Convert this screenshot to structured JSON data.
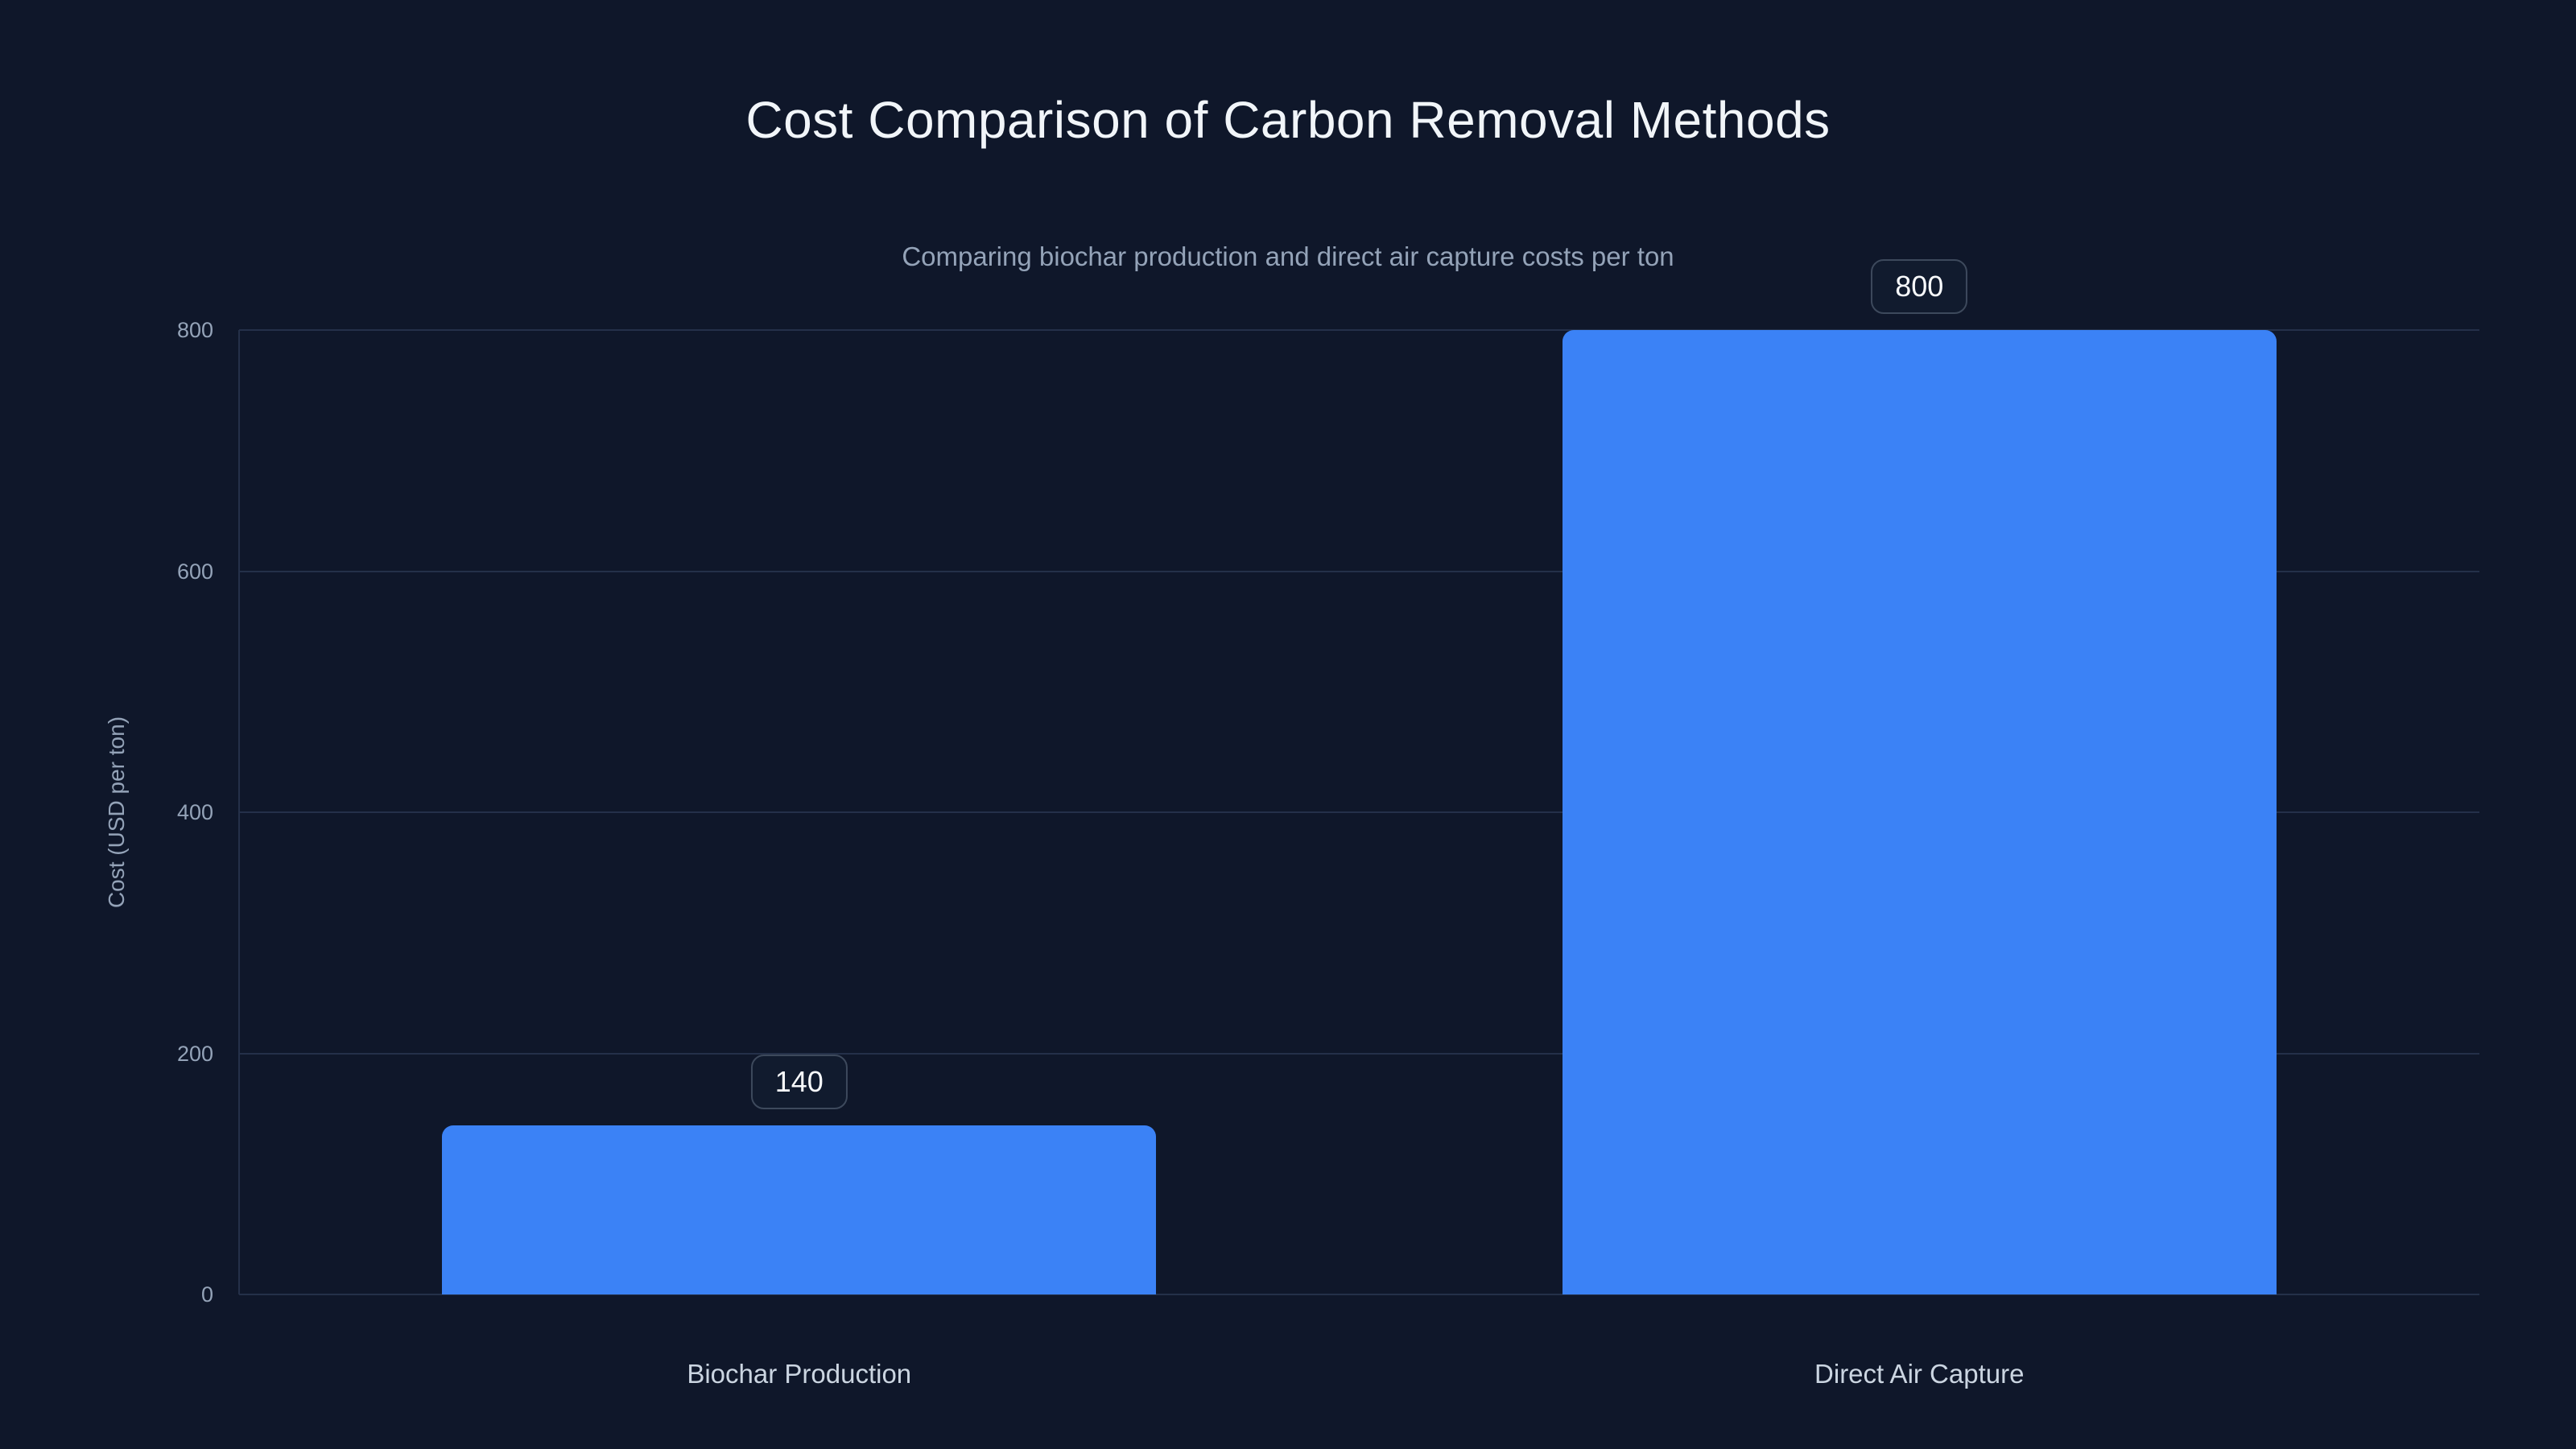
{
  "header": {
    "title": "Cost Comparison of Carbon Removal Methods",
    "subtitle": "Comparing biochar production and direct air capture costs per ton"
  },
  "chart_data": {
    "type": "bar",
    "title": "Cost Comparison of Carbon Removal Methods",
    "subtitle": "Comparing biochar production and direct air capture costs per ton",
    "categories": [
      "Biochar Production",
      "Direct Air Capture"
    ],
    "values": [
      140,
      800
    ],
    "value_labels": [
      "140",
      "800"
    ],
    "xlabel": "",
    "ylabel": "Cost (USD per ton)",
    "ylim": [
      0,
      800
    ],
    "yticks": [
      0,
      200,
      400,
      600,
      800
    ],
    "grid": true,
    "legend": false,
    "bar_color": "#3b82f6",
    "value_label_style": "rounded-badge"
  },
  "colors": {
    "background": "#0f172a",
    "title": "#f1f5f9",
    "subtitle": "#94a3b8",
    "tick": "#94a3b8",
    "category_label": "#cbd5e1",
    "gridline": "#243049",
    "bar": "#3b82f6",
    "badge_border": "#3d495c",
    "badge_text": "#f8fafc"
  }
}
